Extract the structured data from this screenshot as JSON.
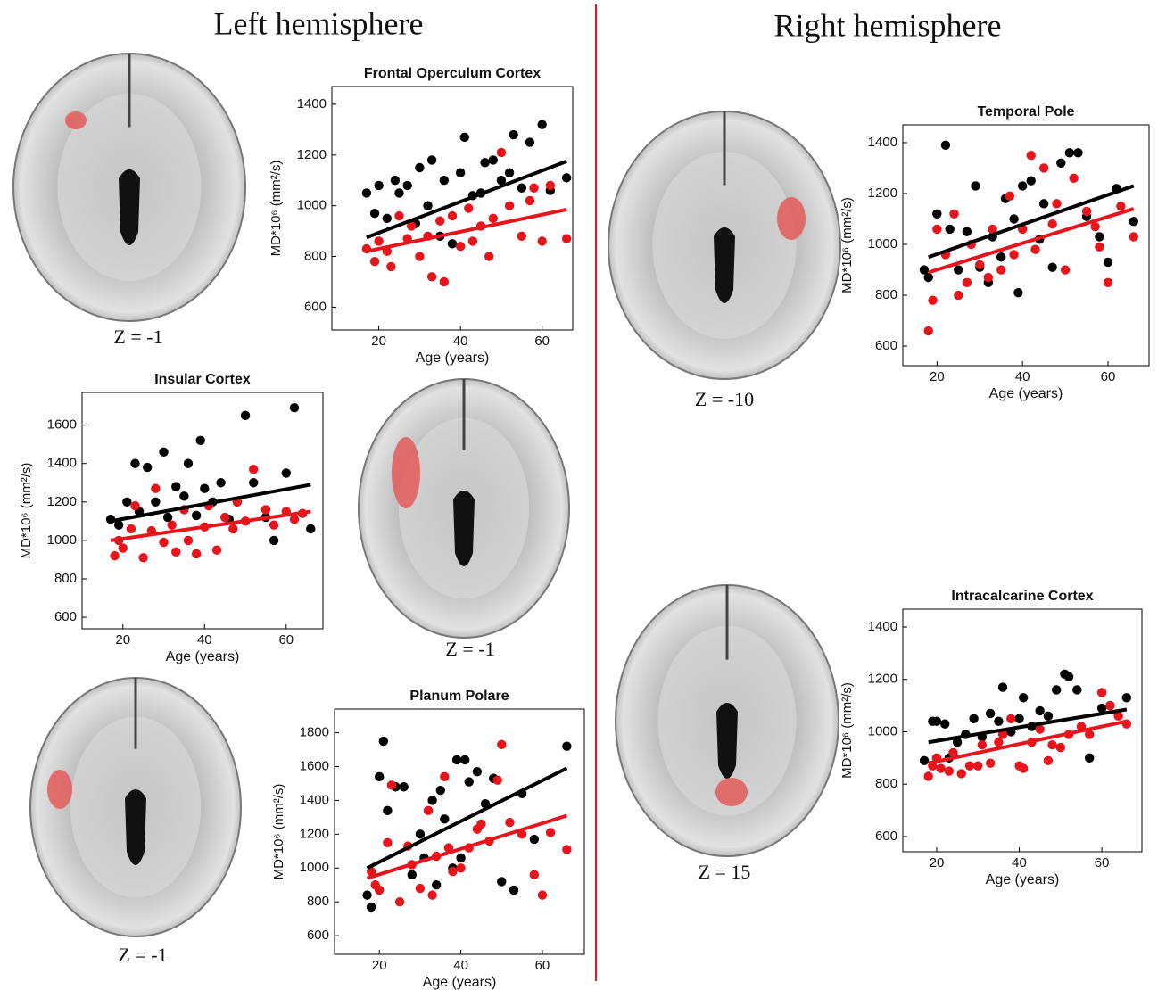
{
  "headers": {
    "left": "Left hemisphere",
    "right": "Right hemisphere"
  },
  "slice_labels": [
    "Z = -1",
    "Z = -1",
    "Z = -1",
    "Z = -10",
    "Z = 15"
  ],
  "chart_data": [
    {
      "type": "scatter",
      "title": "Frontal Operculum Cortex",
      "xlabel": "Age (years)",
      "ylabel": "MD*10⁶ (mm²/s)",
      "xlim": [
        8.5,
        67.5
      ],
      "ylim": [
        510,
        1470
      ],
      "xticks": [
        20,
        40,
        60
      ],
      "yticks": [
        600,
        800,
        1000,
        1200,
        1400
      ],
      "series": [
        {
          "color": "#000000",
          "x": [
            17,
            19,
            20,
            22,
            24,
            25,
            27,
            29,
            30,
            32,
            33,
            35,
            36,
            38,
            40,
            41,
            43,
            45,
            46,
            48,
            50,
            52,
            53,
            55,
            57,
            60,
            62,
            66
          ],
          "y": [
            1050,
            970,
            1080,
            950,
            1100,
            1050,
            1080,
            930,
            1150,
            1000,
            1180,
            880,
            1100,
            850,
            1130,
            1270,
            1040,
            1050,
            1170,
            1180,
            1100,
            1130,
            1280,
            1070,
            1250,
            1320,
            1060,
            1110
          ],
          "fit_x": [
            17,
            66
          ],
          "fit_y": [
            875,
            1175
          ]
        },
        {
          "color": "#e8141b",
          "x": [
            17,
            19,
            20,
            22,
            23,
            25,
            27,
            28,
            30,
            32,
            33,
            35,
            36,
            38,
            40,
            42,
            43,
            45,
            47,
            48,
            50,
            52,
            55,
            57,
            58,
            60,
            62,
            66
          ],
          "y": [
            830,
            780,
            860,
            820,
            760,
            960,
            870,
            920,
            800,
            880,
            720,
            940,
            700,
            960,
            840,
            990,
            860,
            920,
            800,
            950,
            1210,
            1000,
            880,
            1020,
            1070,
            860,
            1080,
            870
          ],
          "fit_x": [
            17,
            66
          ],
          "fit_y": [
            820,
            985
          ]
        }
      ]
    },
    {
      "type": "scatter",
      "title": "Insular Cortex",
      "xlabel": "Age (years)",
      "ylabel": "MD*10⁶ (mm²/s)",
      "xlim": [
        10,
        69
      ],
      "ylim": [
        540,
        1770
      ],
      "xticks": [
        20,
        40,
        60
      ],
      "yticks": [
        600,
        800,
        1000,
        1200,
        1400,
        1600
      ],
      "series": [
        {
          "color": "#000000",
          "x": [
            17,
            19,
            21,
            23,
            24,
            26,
            28,
            30,
            31,
            33,
            35,
            36,
            38,
            39,
            40,
            42,
            44,
            46,
            48,
            50,
            52,
            55,
            57,
            60,
            62,
            66
          ],
          "y": [
            1110,
            1080,
            1200,
            1400,
            1150,
            1380,
            1200,
            1460,
            1120,
            1280,
            1230,
            1400,
            1130,
            1520,
            1270,
            1200,
            1300,
            1110,
            1200,
            1650,
            1300,
            1120,
            1000,
            1350,
            1690,
            1060
          ],
          "fit_x": [
            17,
            66
          ],
          "fit_y": [
            1100,
            1290
          ]
        },
        {
          "color": "#e8141b",
          "x": [
            18,
            19,
            20,
            22,
            23,
            25,
            27,
            28,
            30,
            32,
            33,
            35,
            36,
            38,
            40,
            41,
            43,
            45,
            47,
            48,
            50,
            52,
            55,
            57,
            60,
            62,
            64
          ],
          "y": [
            920,
            1000,
            960,
            1060,
            1180,
            910,
            1050,
            1270,
            990,
            1080,
            940,
            1160,
            1000,
            930,
            1070,
            1180,
            950,
            1120,
            1060,
            1200,
            1100,
            1370,
            1160,
            1080,
            1150,
            1110,
            1140
          ],
          "fit_x": [
            17,
            66
          ],
          "fit_y": [
            1000,
            1150
          ]
        }
      ]
    },
    {
      "type": "scatter",
      "title": "Planum Polare",
      "xlabel": "Age (years)",
      "ylabel": "MD*10⁶ (mm²/s)",
      "xlim": [
        9,
        70.3
      ],
      "ylim": [
        490,
        1940
      ],
      "xticks": [
        20,
        40,
        60
      ],
      "yticks": [
        600,
        800,
        1000,
        1200,
        1400,
        1600,
        1800
      ],
      "series": [
        {
          "color": "#000000",
          "x": [
            17,
            18,
            20,
            21,
            22,
            24,
            26,
            28,
            30,
            31,
            33,
            34,
            35,
            36,
            38,
            39,
            40,
            41,
            42,
            44,
            46,
            48,
            50,
            53,
            55,
            58,
            66
          ],
          "y": [
            840,
            770,
            1540,
            1750,
            1340,
            1480,
            1480,
            960,
            1200,
            1060,
            1400,
            900,
            1460,
            1290,
            1000,
            1640,
            1060,
            1640,
            1510,
            1570,
            1380,
            1530,
            920,
            870,
            1440,
            1170,
            1720
          ],
          "fit_x": [
            17,
            66
          ],
          "fit_y": [
            1000,
            1590
          ]
        },
        {
          "color": "#e8141b",
          "x": [
            18,
            19,
            20,
            22,
            23,
            25,
            27,
            28,
            30,
            32,
            33,
            34,
            36,
            37,
            38,
            40,
            42,
            44,
            45,
            47,
            49,
            50,
            52,
            55,
            58,
            60,
            62,
            66
          ],
          "y": [
            980,
            900,
            870,
            1150,
            1490,
            800,
            1130,
            1020,
            880,
            1340,
            840,
            1070,
            1540,
            1120,
            980,
            1000,
            1120,
            1230,
            1260,
            1160,
            1520,
            1730,
            1270,
            1200,
            960,
            840,
            1210,
            1110
          ],
          "fit_x": [
            17,
            66
          ],
          "fit_y": [
            940,
            1310
          ]
        }
      ]
    },
    {
      "type": "scatter",
      "title": "Temporal Pole",
      "xlabel": "Age (years)",
      "ylabel": "MD*10⁶ (mm²/s)",
      "xlim": [
        12,
        69.6
      ],
      "ylim": [
        523,
        1470
      ],
      "xticks": [
        20,
        40,
        60
      ],
      "yticks": [
        600,
        800,
        1000,
        1200,
        1400
      ],
      "series": [
        {
          "color": "#000000",
          "x": [
            17,
            18,
            20,
            22,
            23,
            25,
            27,
            29,
            30,
            32,
            33,
            35,
            36,
            38,
            39,
            40,
            42,
            44,
            45,
            47,
            49,
            51,
            53,
            55,
            58,
            60,
            62,
            66
          ],
          "y": [
            900,
            870,
            1120,
            1390,
            1060,
            900,
            1050,
            1230,
            910,
            850,
            1030,
            950,
            1180,
            1100,
            810,
            1230,
            1250,
            1020,
            1160,
            910,
            1320,
            1360,
            1360,
            1110,
            1030,
            930,
            1220,
            1090
          ],
          "fit_x": [
            18,
            66
          ],
          "fit_y": [
            950,
            1230
          ]
        },
        {
          "color": "#e8141b",
          "x": [
            18,
            19,
            20,
            22,
            24,
            25,
            27,
            28,
            30,
            32,
            33,
            35,
            37,
            38,
            40,
            42,
            43,
            45,
            47,
            48,
            50,
            52,
            55,
            57,
            58,
            60,
            63,
            66
          ],
          "y": [
            660,
            780,
            1060,
            960,
            1120,
            800,
            850,
            1000,
            920,
            870,
            1060,
            900,
            1190,
            960,
            1060,
            1350,
            980,
            1300,
            1080,
            1160,
            900,
            1260,
            1130,
            1070,
            990,
            850,
            1150,
            1030
          ],
          "fit_x": [
            18,
            66
          ],
          "fit_y": [
            890,
            1140
          ]
        }
      ]
    },
    {
      "type": "scatter",
      "title": "Intracalcarine Cortex",
      "xlabel": "Age (years)",
      "ylabel": "MD*10⁶ (mm²/s)",
      "xlim": [
        11.8,
        69.7
      ],
      "ylim": [
        542,
        1468
      ],
      "xticks": [
        20,
        40,
        60
      ],
      "yticks": [
        600,
        800,
        1000,
        1200,
        1400
      ],
      "series": [
        {
          "color": "#000000",
          "x": [
            17,
            19,
            20,
            22,
            23,
            25,
            27,
            29,
            31,
            33,
            35,
            36,
            38,
            40,
            41,
            43,
            45,
            47,
            49,
            51,
            52,
            54,
            57,
            60,
            62,
            66
          ],
          "y": [
            890,
            1040,
            1040,
            1030,
            900,
            960,
            990,
            1050,
            980,
            1070,
            1040,
            1170,
            1000,
            1050,
            1130,
            1020,
            1080,
            1060,
            1160,
            1220,
            1210,
            1160,
            900,
            1090,
            1100,
            1130
          ],
          "fit_x": [
            18,
            66
          ],
          "fit_y": [
            960,
            1085
          ]
        },
        {
          "color": "#e8141b",
          "x": [
            18,
            19,
            20,
            21,
            23,
            24,
            26,
            28,
            30,
            31,
            33,
            35,
            36,
            38,
            40,
            41,
            43,
            45,
            47,
            48,
            50,
            52,
            55,
            57,
            60,
            62,
            64,
            66
          ],
          "y": [
            830,
            870,
            900,
            860,
            850,
            920,
            840,
            870,
            870,
            950,
            880,
            960,
            990,
            1050,
            870,
            860,
            960,
            1010,
            890,
            950,
            940,
            990,
            1020,
            990,
            1150,
            1100,
            1060,
            1030
          ],
          "fit_x": [
            18,
            66
          ],
          "fit_y": [
            880,
            1040
          ]
        }
      ]
    }
  ]
}
